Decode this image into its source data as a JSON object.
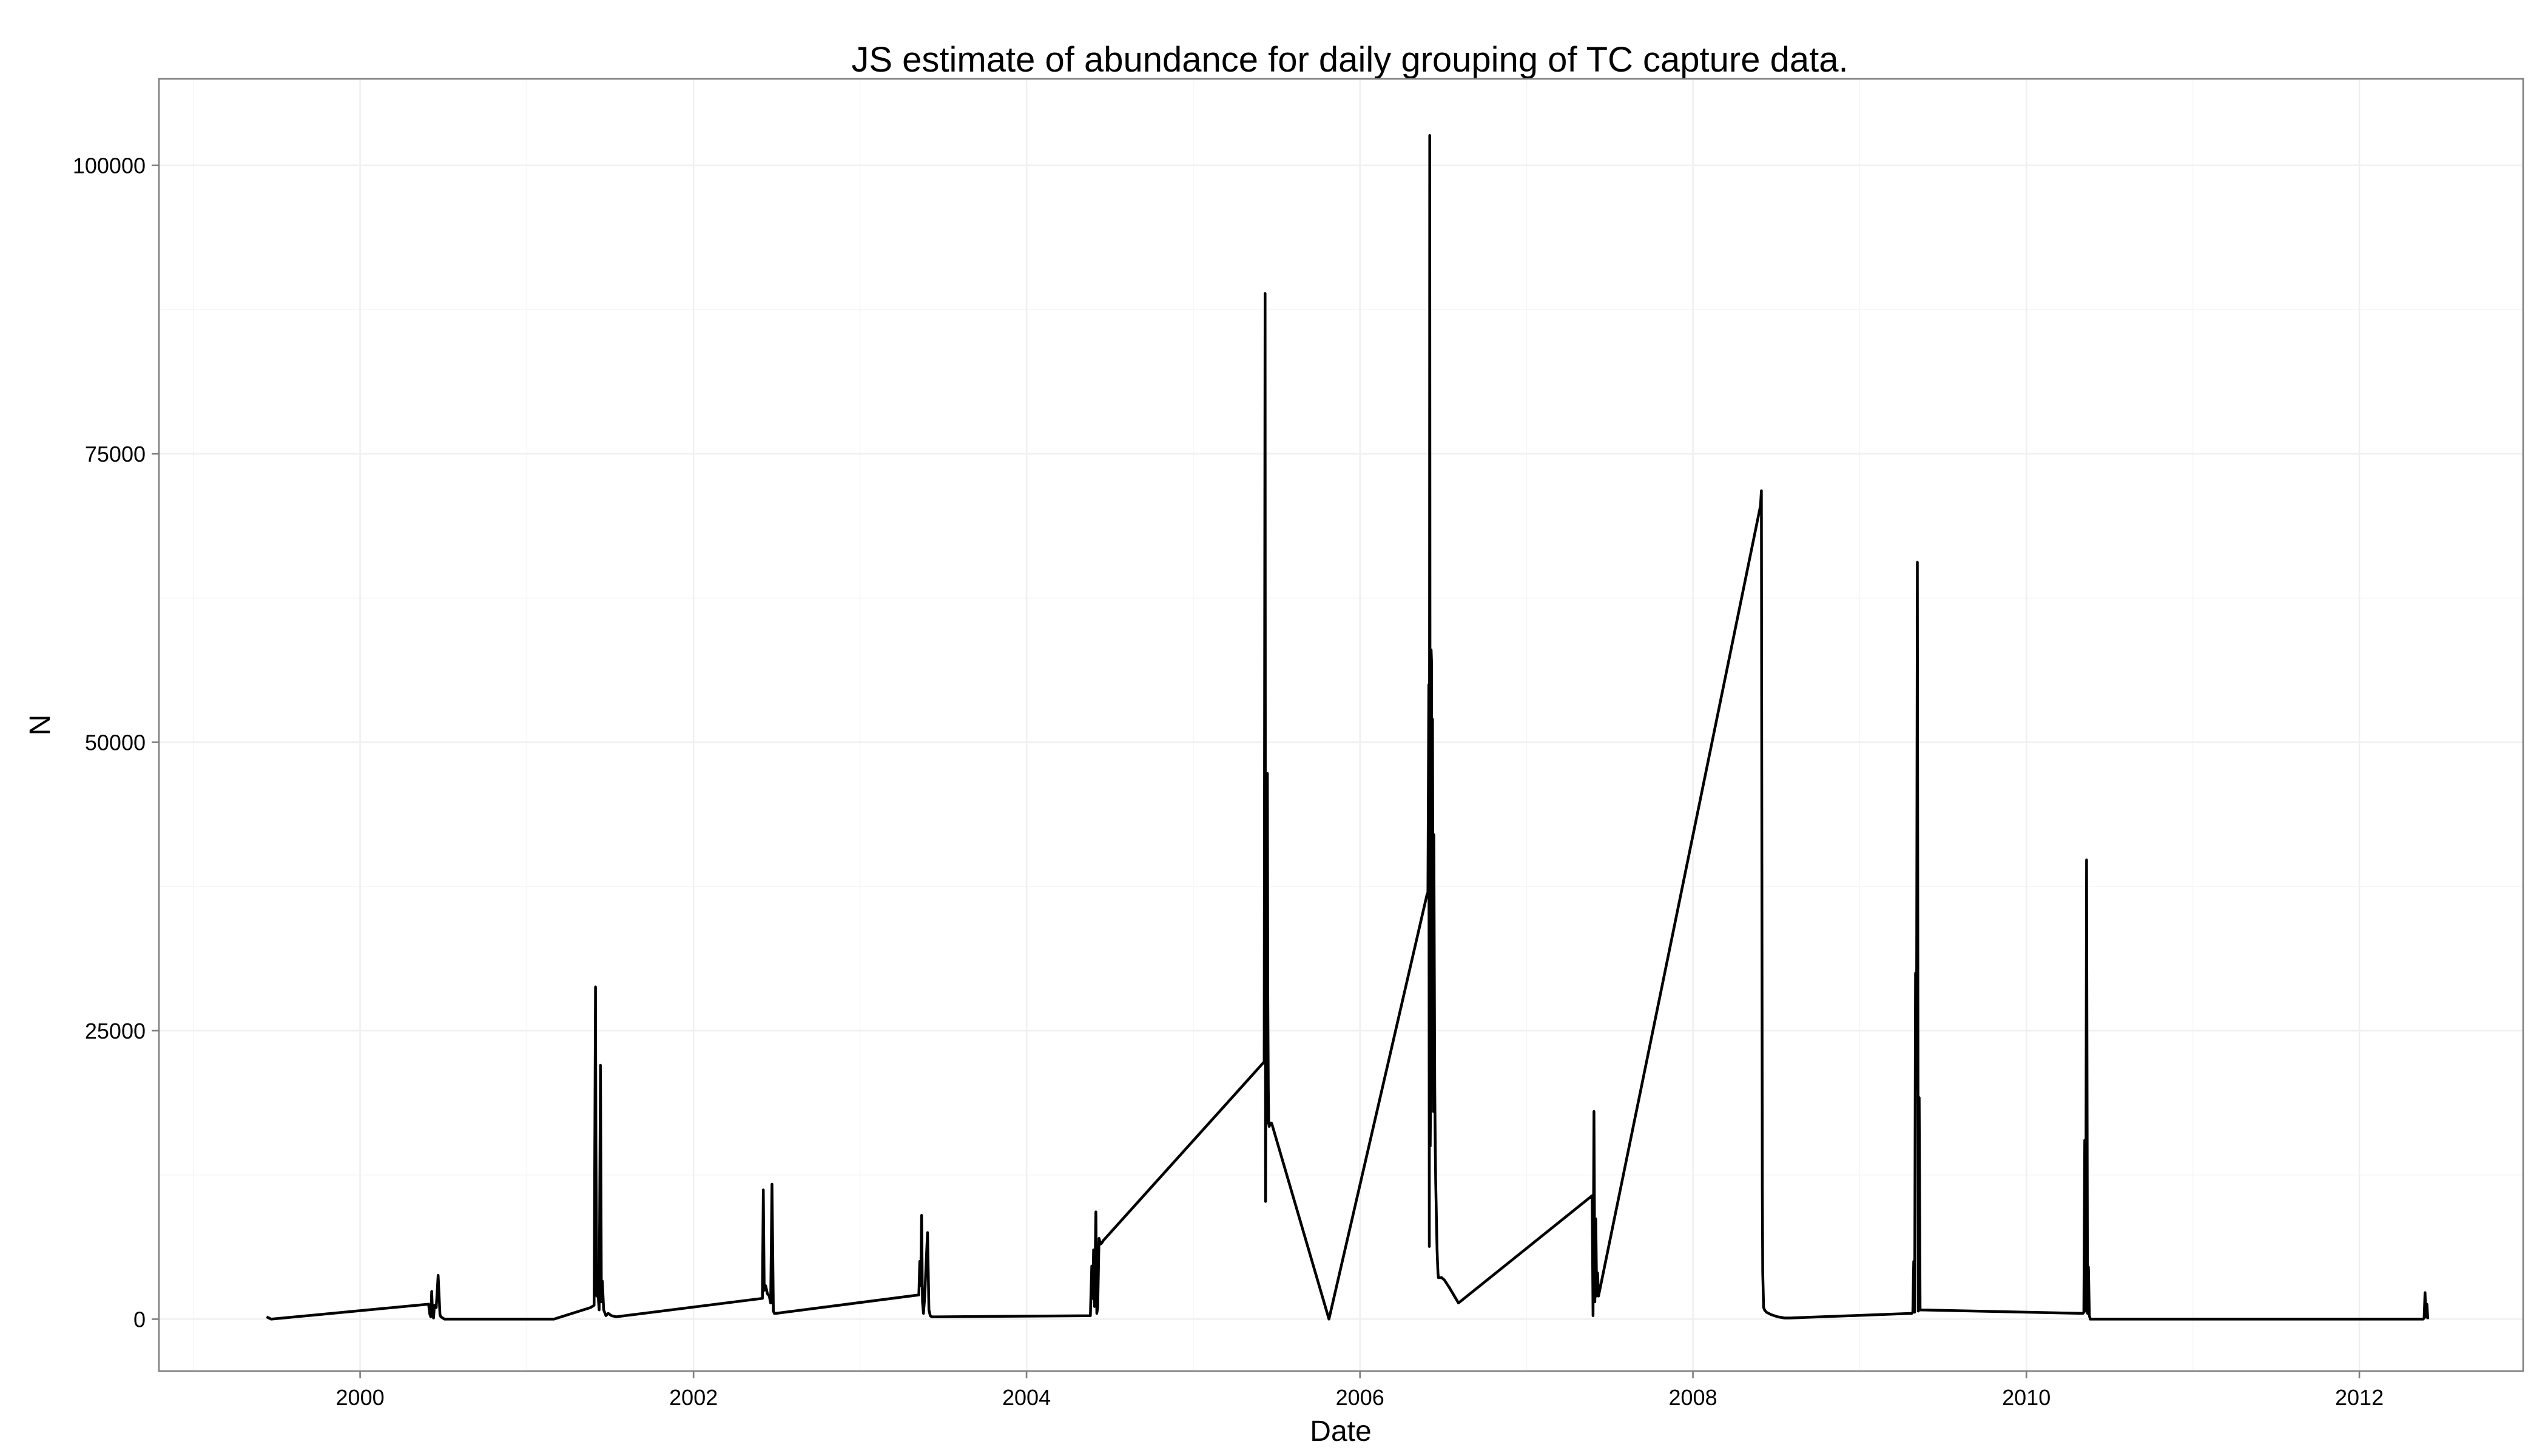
{
  "chart_data": {
    "type": "line",
    "title": "JS estimate of abundance for daily grouping of TC capture data.",
    "xlabel": "Date",
    "ylabel": "N",
    "x_type": "date",
    "xlim": [
      "1998-10-17",
      "2012-12-25"
    ],
    "ylim": [
      -4500,
      107500
    ],
    "x_ticks": [
      {
        "date": "2000-01-01",
        "label": "2000"
      },
      {
        "date": "2002-01-01",
        "label": "2002"
      },
      {
        "date": "2004-01-01",
        "label": "2004"
      },
      {
        "date": "2006-01-01",
        "label": "2006"
      },
      {
        "date": "2008-01-01",
        "label": "2008"
      },
      {
        "date": "2010-01-01",
        "label": "2010"
      },
      {
        "date": "2012-01-01",
        "label": "2012"
      }
    ],
    "y_ticks": [
      {
        "value": 0,
        "label": "0"
      },
      {
        "value": 25000,
        "label": "25000"
      },
      {
        "value": 50000,
        "label": "50000"
      },
      {
        "value": 75000,
        "label": "75000"
      },
      {
        "value": 100000,
        "label": "100000"
      }
    ],
    "grid": true,
    "legend": "none",
    "line_color": "#000000",
    "series": [
      {
        "x": [
          "1999-06-10",
          "1999-06-20",
          "2000-05-30",
          "2000-06-02",
          "2000-06-04",
          "2000-06-06",
          "2000-06-08",
          "2000-06-10",
          "2000-06-12",
          "2000-06-16",
          "2000-06-20",
          "2000-06-24",
          "2000-06-26",
          "2000-06-30",
          "2000-07-04",
          "2000-07-08",
          "2000-07-12",
          "2000-07-20",
          "2001-03-01",
          "2001-05-20",
          "2001-05-28",
          "2001-05-31",
          "2001-06-01",
          "2001-06-03",
          "2001-06-05",
          "2001-06-08",
          "2001-06-11",
          "2001-06-13",
          "2001-06-15",
          "2001-06-18",
          "2001-06-20",
          "2001-06-23",
          "2001-06-28",
          "2001-07-05",
          "2001-07-15",
          "2002-06-01",
          "2002-06-03",
          "2002-06-05",
          "2002-06-08",
          "2002-06-12",
          "2002-06-16",
          "2002-06-19",
          "2002-06-22",
          "2002-06-25",
          "2002-06-27",
          "2002-07-01",
          "2003-05-10",
          "2003-05-12",
          "2003-05-14",
          "2003-05-16",
          "2003-05-18",
          "2003-05-20",
          "2003-05-23",
          "2003-05-26",
          "2003-05-29",
          "2003-06-01",
          "2003-06-04",
          "2003-06-07",
          "2003-06-10",
          "2003-06-14",
          "2003-06-20",
          "2004-05-20",
          "2004-05-23",
          "2004-05-25",
          "2004-05-27",
          "2004-05-29",
          "2004-06-01",
          "2004-06-03",
          "2004-06-05",
          "2004-06-08",
          "2004-06-11",
          "2004-06-14",
          "2004-06-17",
          "2005-06-05",
          "2005-06-07",
          "2005-06-08",
          "2005-06-09",
          "2005-06-10",
          "2005-06-11",
          "2005-06-12",
          "2005-06-13",
          "2005-06-14",
          "2005-06-15",
          "2005-06-16",
          "2005-06-17",
          "2005-06-18",
          "2005-06-19",
          "2005-06-20",
          "2005-06-21",
          "2005-06-22",
          "2005-10-25",
          "2006-05-28",
          "2006-05-30",
          "2006-06-01",
          "2006-06-02",
          "2006-06-03",
          "2006-06-04",
          "2006-06-05",
          "2006-06-06",
          "2006-06-07",
          "2006-06-08",
          "2006-06-09",
          "2006-06-10",
          "2006-06-11",
          "2006-06-12",
          "2006-06-13",
          "2006-06-14",
          "2006-06-15",
          "2006-06-16",
          "2006-06-17",
          "2006-06-18",
          "2006-06-19",
          "2006-06-20",
          "2006-06-21",
          "2006-06-22",
          "2006-06-23",
          "2006-06-24",
          "2006-06-25",
          "2006-06-26",
          "2006-06-27",
          "2006-06-28",
          "2006-06-29",
          "2006-07-05",
          "2006-07-15",
          "2006-08-05",
          "2007-05-25",
          "2007-05-27",
          "2007-05-29",
          "2007-05-31",
          "2007-06-02",
          "2007-06-04",
          "2007-06-06",
          "2007-06-08",
          "2008-05-28",
          "2008-05-30",
          "2008-06-01",
          "2008-06-02",
          "2008-06-04",
          "2008-06-06",
          "2008-06-08",
          "2008-06-10",
          "2008-06-20",
          "2008-07-05",
          "2008-07-20",
          "2008-08-01",
          "2009-04-25",
          "2009-04-27",
          "2009-04-29",
          "2009-05-01",
          "2009-05-03",
          "2009-05-05",
          "2009-05-07",
          "2009-05-09",
          "2009-05-11",
          "2009-05-13",
          "2009-05-15",
          "2010-05-05",
          "2010-05-07",
          "2010-05-09",
          "2010-05-11",
          "2010-05-13",
          "2010-05-15",
          "2010-05-17",
          "2010-05-19",
          "2010-05-21",
          "2011-01-01",
          "2011-06-01",
          "2012-01-01",
          "2012-05-20",
          "2012-05-22",
          "2012-05-24",
          "2012-05-26",
          "2012-05-28",
          "2012-05-30"
        ],
        "y": [
          200,
          0,
          1300,
          400,
          200,
          2400,
          300,
          100,
          1200,
          1000,
          3800,
          400,
          200,
          100,
          0,
          0,
          0,
          0,
          0,
          1000,
          1200,
          28800,
          15000,
          2000,
          2500,
          800,
          22000,
          1500,
          3300,
          800,
          600,
          300,
          500,
          300,
          200,
          1800,
          11200,
          2500,
          2900,
          2200,
          2000,
          1400,
          11700,
          700,
          500,
          500,
          2100,
          5000,
          2900,
          9000,
          1500,
          500,
          2000,
          5000,
          7500,
          800,
          300,
          200,
          200,
          200,
          200,
          300,
          4600,
          1800,
          6000,
          1100,
          9300,
          500,
          1000,
          7000,
          6500,
          6600,
          6800,
          22300,
          88900,
          10200,
          25000,
          45000,
          17000,
          47300,
          28000,
          20000,
          17000,
          16700,
          16800,
          16900,
          17000,
          17000,
          17000,
          16900,
          0,
          36800,
          37000,
          55000,
          6300,
          102600,
          15000,
          20000,
          58000,
          57000,
          25000,
          52000,
          35000,
          18000,
          42000,
          30000,
          20000,
          15000,
          12000,
          10000,
          8000,
          6000,
          5000,
          4000,
          3600,
          3600,
          3600,
          3600,
          3600,
          3600,
          3600,
          3600,
          3400,
          2800,
          1400,
          10700,
          300,
          18000,
          1500,
          8700,
          2000,
          4000,
          2000,
          70500,
          71800,
          11400,
          4000,
          1000,
          800,
          700,
          600,
          400,
          200,
          100,
          100,
          500,
          600,
          5000,
          600,
          30000,
          20000,
          65600,
          700,
          19200,
          800,
          800,
          500,
          600,
          15500,
          700,
          39800,
          500,
          4500,
          300,
          0,
          0,
          0,
          0,
          0,
          100,
          2300,
          200,
          1300,
          0
        ]
      }
    ]
  }
}
